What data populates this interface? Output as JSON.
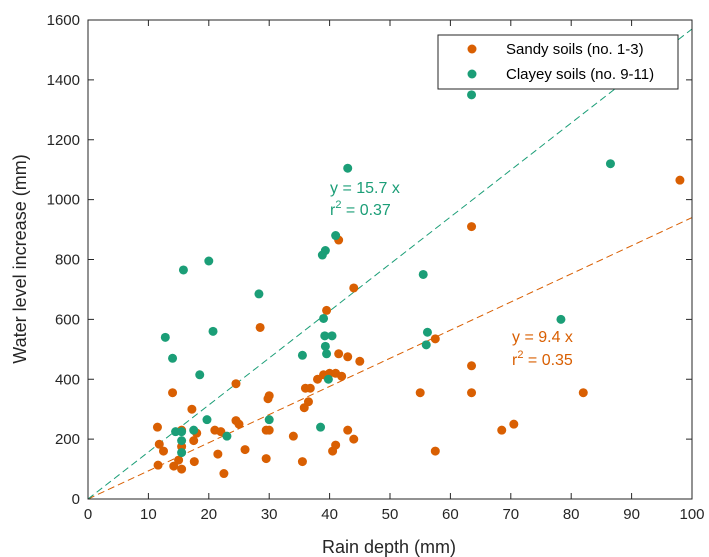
{
  "chart_data": {
    "type": "scatter",
    "xlabel": "Rain depth (mm)",
    "ylabel": "Water level increase (mm)",
    "xlim": [
      0,
      100
    ],
    "ylim": [
      0,
      1600
    ],
    "xticks": [
      "0",
      "10",
      "20",
      "30",
      "40",
      "50",
      "60",
      "70",
      "80",
      "90",
      "100"
    ],
    "yticks": [
      "0",
      "200",
      "400",
      "600",
      "800",
      "1000",
      "1200",
      "1400",
      "1600"
    ],
    "grid": false,
    "legend_position": "top-right",
    "series": [
      {
        "name": "Sandy soils (no. 1-3)",
        "color": "#D95F02",
        "fit_slope": 9.4,
        "annotation": {
          "eq": "y = 9.4 x",
          "r2_prefix": "r",
          "r2_sup": "2",
          "r2_value": " = 0.35"
        },
        "points": [
          [
            11.5,
            240
          ],
          [
            11.8,
            183
          ],
          [
            11.6,
            113
          ],
          [
            12.5,
            160
          ],
          [
            14,
            355
          ],
          [
            14.2,
            110
          ],
          [
            15,
            130
          ],
          [
            15.5,
            100
          ],
          [
            15.5,
            175
          ],
          [
            15.5,
            230
          ],
          [
            17.2,
            300
          ],
          [
            17.5,
            195
          ],
          [
            17.6,
            125
          ],
          [
            18,
            220
          ],
          [
            21,
            230
          ],
          [
            21.5,
            150
          ],
          [
            22,
            225
          ],
          [
            22.5,
            85
          ],
          [
            24.5,
            385
          ],
          [
            24.5,
            262
          ],
          [
            25,
            250
          ],
          [
            26,
            165
          ],
          [
            28.5,
            573
          ],
          [
            29.5,
            135
          ],
          [
            29.5,
            230
          ],
          [
            30,
            345
          ],
          [
            30,
            230
          ],
          [
            29.8,
            335
          ],
          [
            34,
            210
          ],
          [
            35.5,
            125
          ],
          [
            35.8,
            305
          ],
          [
            36,
            370
          ],
          [
            36.5,
            325
          ],
          [
            36.8,
            370
          ],
          [
            38,
            400
          ],
          [
            39,
            415
          ],
          [
            39.5,
            630
          ],
          [
            40,
            420
          ],
          [
            40.5,
            160
          ],
          [
            41,
            420
          ],
          [
            41,
            180
          ],
          [
            41.5,
            865
          ],
          [
            41.5,
            485
          ],
          [
            42,
            410
          ],
          [
            43,
            475
          ],
          [
            43,
            230
          ],
          [
            44,
            200
          ],
          [
            44,
            705
          ],
          [
            45,
            460
          ],
          [
            55,
            355
          ],
          [
            57.5,
            535
          ],
          [
            57.5,
            160
          ],
          [
            63.5,
            910
          ],
          [
            63.5,
            445
          ],
          [
            63.5,
            355
          ],
          [
            68.5,
            230
          ],
          [
            70.5,
            250
          ],
          [
            82,
            355
          ],
          [
            98,
            1065
          ]
        ]
      },
      {
        "name": "Clayey soils (no. 9-11)",
        "color": "#1B9E77",
        "fit_slope": 15.7,
        "annotation": {
          "eq": "y = 15.7 x",
          "r2_prefix": "r",
          "r2_sup": "2",
          "r2_value": " = 0.37"
        },
        "points": [
          [
            12.8,
            540
          ],
          [
            14,
            470
          ],
          [
            14.5,
            225
          ],
          [
            15.5,
            195
          ],
          [
            15.5,
            155
          ],
          [
            15.5,
            225
          ],
          [
            15.8,
            765
          ],
          [
            17.5,
            230
          ],
          [
            18.5,
            415
          ],
          [
            19.7,
            265
          ],
          [
            20,
            795
          ],
          [
            20.7,
            560
          ],
          [
            23,
            210
          ],
          [
            28.3,
            685
          ],
          [
            30,
            265
          ],
          [
            35.5,
            480
          ],
          [
            38.5,
            240
          ],
          [
            38.8,
            815
          ],
          [
            39,
            603
          ],
          [
            39.2,
            545
          ],
          [
            39.3,
            830
          ],
          [
            39.3,
            510
          ],
          [
            39.5,
            485
          ],
          [
            39.8,
            400
          ],
          [
            40.4,
            545
          ],
          [
            41,
            880
          ],
          [
            43,
            1105
          ],
          [
            55.5,
            750
          ],
          [
            56,
            515
          ],
          [
            56.2,
            557
          ],
          [
            63.5,
            1350
          ],
          [
            78.3,
            600
          ],
          [
            86.5,
            1120
          ]
        ]
      }
    ]
  }
}
